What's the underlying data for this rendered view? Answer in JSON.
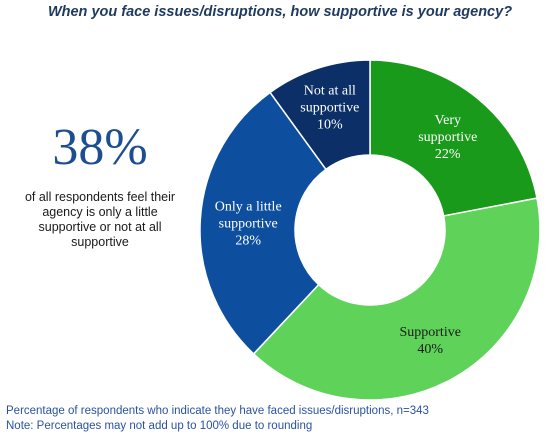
{
  "title": "When you face issues/disruptions, how supportive is your agency?",
  "callout": {
    "value": "38%",
    "text": "of all respondents feel their agency is only a little supportive or not at all supportive"
  },
  "chart_data": {
    "type": "pie",
    "variant": "donut",
    "categories": [
      "Very supportive",
      "Supportive",
      "Only a little supportive",
      "Not at all supportive"
    ],
    "values": [
      22,
      40,
      28,
      10
    ],
    "value_labels": [
      "22%",
      "40%",
      "28%",
      "10%"
    ],
    "colors": [
      "#1a9a1a",
      "#5fd25a",
      "#0d4f9e",
      "#0b2f66"
    ],
    "start": "top, clockwise"
  },
  "footnotes": {
    "line1": "Percentage of respondents who indicate they have faced issues/disruptions, n=343",
    "line2": "Note: Percentages may not add up to 100% due to rounding"
  }
}
